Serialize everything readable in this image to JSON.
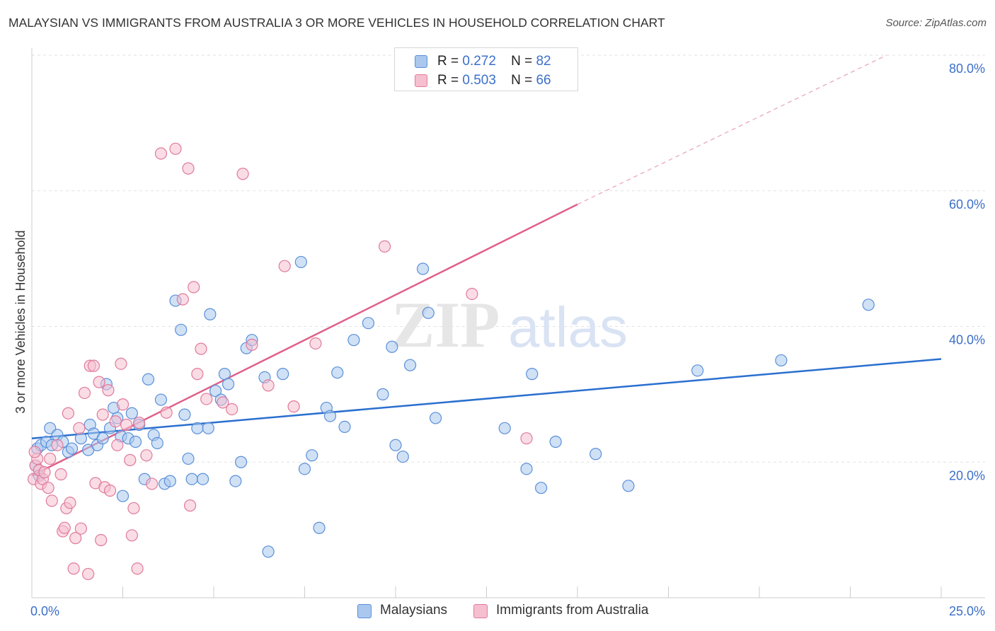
{
  "title": "MALAYSIAN VS IMMIGRANTS FROM AUSTRALIA 3 OR MORE VEHICLES IN HOUSEHOLD CORRELATION CHART",
  "source": "Source: ZipAtlas.com",
  "watermark": {
    "zip": "ZIP",
    "atlas": "atlas"
  },
  "legend": {
    "rows": [
      {
        "r_label": "R =",
        "r_value": "0.272",
        "n_label": "N =",
        "n_value": "82"
      },
      {
        "r_label": "R =",
        "r_value": "0.503",
        "n_label": "N =",
        "n_value": "66"
      }
    ],
    "bottom": [
      "Malaysians",
      "Immigrants from Australia"
    ]
  },
  "colors": {
    "blue_fill": "#aac8ee",
    "blue_stroke": "#5a8fd8",
    "blue_line": "#2a6fcf",
    "pink_fill": "#f6bfd0",
    "pink_stroke": "#e07a9c",
    "pink_line": "#e0608a",
    "axis_text": "#3b6fc9",
    "grid": "#e2e2e2"
  },
  "chart_data": {
    "type": "scatter",
    "title": "MALAYSIAN VS IMMIGRANTS FROM AUSTRALIA 3 OR MORE VEHICLES IN HOUSEHOLD CORRELATION CHART",
    "xlabel": "",
    "ylabel": "3 or more Vehicles in Household",
    "xlim": [
      0,
      25
    ],
    "ylim": [
      0,
      80
    ],
    "x_tick_labels": [
      "0.0%",
      "25.0%"
    ],
    "y_ticks": [
      20,
      40,
      60,
      80
    ],
    "y_tick_labels": [
      "20.0%",
      "40.0%",
      "60.0%",
      "80.0%"
    ],
    "grid": true,
    "legend_position": "top-center",
    "series": [
      {
        "name": "Malaysians",
        "R": 0.272,
        "N": 82,
        "trend": {
          "x": [
            0,
            25
          ],
          "y": [
            23.5,
            35.2
          ]
        },
        "points": [
          [
            0.15,
            22.0
          ],
          [
            0.25,
            22.5
          ],
          [
            0.4,
            23.0
          ],
          [
            0.5,
            25.0
          ],
          [
            0.55,
            22.5
          ],
          [
            0.7,
            24.0
          ],
          [
            0.85,
            23.0
          ],
          [
            1.0,
            21.5
          ],
          [
            1.1,
            22.0
          ],
          [
            1.35,
            23.5
          ],
          [
            1.55,
            21.8
          ],
          [
            1.6,
            25.5
          ],
          [
            1.7,
            24.2
          ],
          [
            1.8,
            22.5
          ],
          [
            1.95,
            23.5
          ],
          [
            2.05,
            31.5
          ],
          [
            2.15,
            25.0
          ],
          [
            2.25,
            28.0
          ],
          [
            2.35,
            26.5
          ],
          [
            2.45,
            23.8
          ],
          [
            2.5,
            15.0
          ],
          [
            2.65,
            23.5
          ],
          [
            2.75,
            27.2
          ],
          [
            2.85,
            23.0
          ],
          [
            2.95,
            25.5
          ],
          [
            3.1,
            17.5
          ],
          [
            3.2,
            32.2
          ],
          [
            3.35,
            24.0
          ],
          [
            3.45,
            22.8
          ],
          [
            3.55,
            29.2
          ],
          [
            3.65,
            16.8
          ],
          [
            3.8,
            17.2
          ],
          [
            3.95,
            43.8
          ],
          [
            4.1,
            39.5
          ],
          [
            4.2,
            27.0
          ],
          [
            4.3,
            20.5
          ],
          [
            4.4,
            17.5
          ],
          [
            4.55,
            25.0
          ],
          [
            4.7,
            17.5
          ],
          [
            4.85,
            25.0
          ],
          [
            4.9,
            41.8
          ],
          [
            5.05,
            30.5
          ],
          [
            5.2,
            29.2
          ],
          [
            5.3,
            33.0
          ],
          [
            5.4,
            31.5
          ],
          [
            5.6,
            17.2
          ],
          [
            5.75,
            20.0
          ],
          [
            5.9,
            36.8
          ],
          [
            6.05,
            38.0
          ],
          [
            6.4,
            32.5
          ],
          [
            6.5,
            6.8
          ],
          [
            6.9,
            33.0
          ],
          [
            7.4,
            49.5
          ],
          [
            7.5,
            19.0
          ],
          [
            7.7,
            21.0
          ],
          [
            7.9,
            10.3
          ],
          [
            8.1,
            28.0
          ],
          [
            8.2,
            26.8
          ],
          [
            8.4,
            33.2
          ],
          [
            8.6,
            25.2
          ],
          [
            8.85,
            38.0
          ],
          [
            9.25,
            40.5
          ],
          [
            9.65,
            30.0
          ],
          [
            9.9,
            37.0
          ],
          [
            10.0,
            22.5
          ],
          [
            10.2,
            20.8
          ],
          [
            10.4,
            34.3
          ],
          [
            10.75,
            48.5
          ],
          [
            10.9,
            42.0
          ],
          [
            11.1,
            26.5
          ],
          [
            13.0,
            25.0
          ],
          [
            13.6,
            19.0
          ],
          [
            13.75,
            33.0
          ],
          [
            14.0,
            16.2
          ],
          [
            14.4,
            23.0
          ],
          [
            15.5,
            21.2
          ],
          [
            16.4,
            16.5
          ],
          [
            18.3,
            33.5
          ],
          [
            20.6,
            35.0
          ],
          [
            23.0,
            43.2
          ],
          [
            0.1,
            19.5
          ],
          [
            0.2,
            18.0
          ]
        ]
      },
      {
        "name": "Immigrants from Australia",
        "R": 0.503,
        "N": 66,
        "trend": {
          "x": [
            0,
            15
          ],
          "y": [
            18.0,
            58.0
          ]
        },
        "trend_dashed_extension": {
          "x": [
            15,
            23.5
          ],
          "y": [
            58.0,
            80.0
          ]
        },
        "points": [
          [
            0.05,
            17.5
          ],
          [
            0.1,
            19.5
          ],
          [
            0.15,
            20.5
          ],
          [
            0.2,
            18.8
          ],
          [
            0.25,
            16.8
          ],
          [
            0.3,
            17.5
          ],
          [
            0.35,
            18.5
          ],
          [
            0.45,
            16.2
          ],
          [
            0.5,
            20.5
          ],
          [
            0.55,
            14.3
          ],
          [
            0.7,
            22.5
          ],
          [
            0.8,
            18.2
          ],
          [
            0.85,
            9.8
          ],
          [
            0.9,
            10.3
          ],
          [
            0.95,
            13.2
          ],
          [
            1.0,
            27.2
          ],
          [
            1.05,
            14.0
          ],
          [
            1.15,
            4.3
          ],
          [
            1.2,
            8.8
          ],
          [
            1.3,
            25.0
          ],
          [
            1.35,
            10.2
          ],
          [
            1.45,
            30.2
          ],
          [
            1.55,
            3.5
          ],
          [
            1.6,
            34.2
          ],
          [
            1.7,
            34.2
          ],
          [
            1.75,
            16.9
          ],
          [
            1.85,
            31.8
          ],
          [
            1.9,
            8.5
          ],
          [
            1.95,
            27.0
          ],
          [
            2.0,
            16.3
          ],
          [
            2.1,
            30.6
          ],
          [
            2.15,
            15.8
          ],
          [
            2.3,
            26.0
          ],
          [
            2.35,
            22.5
          ],
          [
            2.45,
            34.5
          ],
          [
            2.5,
            28.5
          ],
          [
            2.6,
            25.5
          ],
          [
            2.7,
            20.3
          ],
          [
            2.75,
            9.2
          ],
          [
            2.8,
            13.2
          ],
          [
            2.9,
            4.3
          ],
          [
            2.95,
            25.8
          ],
          [
            3.15,
            21.0
          ],
          [
            3.3,
            16.8
          ],
          [
            3.55,
            65.5
          ],
          [
            3.7,
            27.3
          ],
          [
            3.95,
            66.2
          ],
          [
            4.15,
            44.0
          ],
          [
            4.3,
            63.3
          ],
          [
            4.35,
            13.6
          ],
          [
            4.45,
            45.8
          ],
          [
            4.55,
            33.0
          ],
          [
            4.65,
            36.7
          ],
          [
            4.8,
            29.3
          ],
          [
            5.25,
            28.8
          ],
          [
            5.5,
            27.8
          ],
          [
            5.8,
            62.5
          ],
          [
            6.05,
            37.3
          ],
          [
            6.5,
            31.3
          ],
          [
            6.95,
            48.9
          ],
          [
            7.2,
            28.2
          ],
          [
            7.8,
            37.5
          ],
          [
            9.7,
            51.8
          ],
          [
            12.1,
            44.8
          ],
          [
            13.6,
            23.5
          ],
          [
            0.08,
            21.5
          ]
        ]
      }
    ]
  }
}
